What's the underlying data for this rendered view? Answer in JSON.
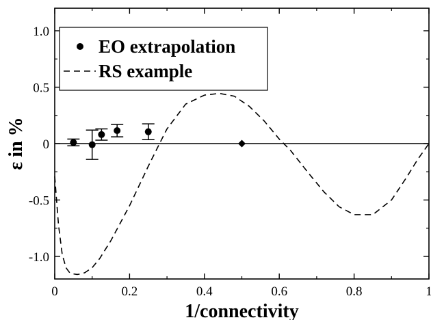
{
  "chart_data": {
    "type": "scatter",
    "title": "",
    "xlabel": "1/connectivity",
    "ylabel": "ε in %",
    "xlim": [
      0,
      1
    ],
    "ylim": [
      -1.2,
      1.2
    ],
    "x_ticks": [
      "0",
      "0.2",
      "0.4",
      "0.6",
      "0.8",
      "1"
    ],
    "y_ticks": [
      "-1.0",
      "-0.5",
      "0",
      "0.5",
      "1.0"
    ],
    "grid": false,
    "legend_position": "top-left",
    "series": [
      {
        "name": "EO extrapolation",
        "kind": "scatter-errorbar",
        "marker": "circle",
        "points": [
          {
            "x": 0.05,
            "y": 0.01,
            "err": 0.03
          },
          {
            "x": 0.1,
            "y": -0.01,
            "err": 0.13
          },
          {
            "x": 0.125,
            "y": 0.08,
            "err": 0.05
          },
          {
            "x": 0.1667,
            "y": 0.115,
            "err": 0.055
          },
          {
            "x": 0.25,
            "y": 0.105,
            "err": 0.07
          }
        ]
      },
      {
        "name": "RS example",
        "kind": "line",
        "dash": "dashed",
        "x": [
          0,
          0.01,
          0.02,
          0.03,
          0.04,
          0.05,
          0.06,
          0.07,
          0.08,
          0.1,
          0.12,
          0.15,
          0.2,
          0.25,
          0.28,
          0.3,
          0.35,
          0.4,
          0.44,
          0.48,
          0.52,
          0.56,
          0.6,
          0.63,
          0.68,
          0.72,
          0.76,
          0.8,
          0.85,
          0.9,
          0.94,
          0.97,
          1.0
        ],
        "y": [
          -0.29,
          -0.72,
          -0.98,
          -1.1,
          -1.145,
          -1.155,
          -1.16,
          -1.155,
          -1.145,
          -1.1,
          -1.02,
          -0.86,
          -0.55,
          -0.2,
          0.0,
          0.13,
          0.35,
          0.43,
          0.445,
          0.42,
          0.33,
          0.2,
          0.04,
          -0.06,
          -0.27,
          -0.43,
          -0.56,
          -0.63,
          -0.63,
          -0.5,
          -0.3,
          -0.14,
          0.0
        ]
      },
      {
        "name": "",
        "kind": "scatter",
        "marker": "diamond",
        "points": [
          {
            "x": 0.5,
            "y": 0.0
          }
        ]
      }
    ],
    "reference_line": {
      "y": 0
    }
  }
}
